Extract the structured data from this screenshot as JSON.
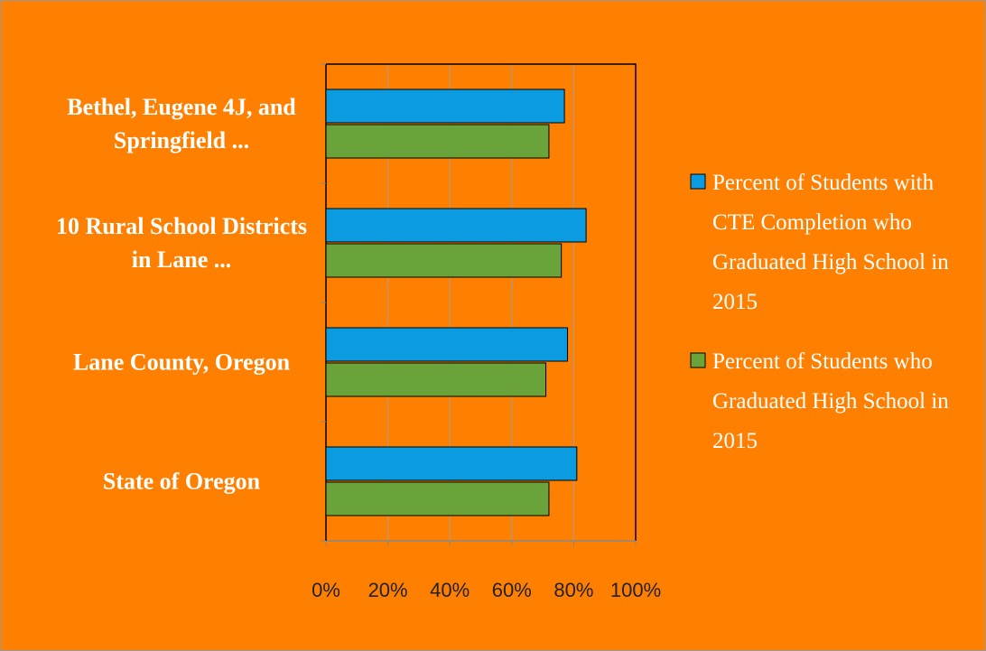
{
  "chart_data": {
    "type": "bar",
    "orientation": "horizontal",
    "categories": [
      "Bethel, Eugene 4J, and Springfield ...",
      "10 Rural School Districts in Lane ...",
      "Lane County, Oregon",
      "State of Oregon"
    ],
    "series": [
      {
        "name": "Percent of Students with CTE Completion who Graduated High School in 2015",
        "color": "#0a9be0",
        "values": [
          77,
          84,
          78,
          81
        ]
      },
      {
        "name": "Percent of Students who Graduated High School in 2015",
        "color": "#6aa33a",
        "values": [
          72,
          76,
          71,
          72
        ]
      }
    ],
    "xlim": [
      0,
      100
    ],
    "xticks": [
      {
        "value": 0,
        "label": "0%"
      },
      {
        "value": 20,
        "label": "20%"
      },
      {
        "value": 40,
        "label": "40%"
      },
      {
        "value": 60,
        "label": "60%"
      },
      {
        "value": 80,
        "label": "80%"
      },
      {
        "value": 100,
        "label": "100%"
      }
    ],
    "grid": true,
    "legend": "right"
  }
}
